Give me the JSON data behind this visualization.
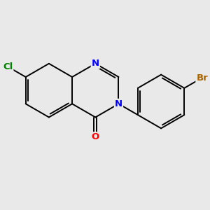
{
  "bg_color": "#e9e9e9",
  "bond_color": "#000000",
  "bond_width": 1.4,
  "dbo": 0.055,
  "atom_colors": {
    "Cl": "#008000",
    "N": "#0000ff",
    "O": "#ff0000",
    "Br": "#aa6600"
  },
  "font_size": 9.5
}
